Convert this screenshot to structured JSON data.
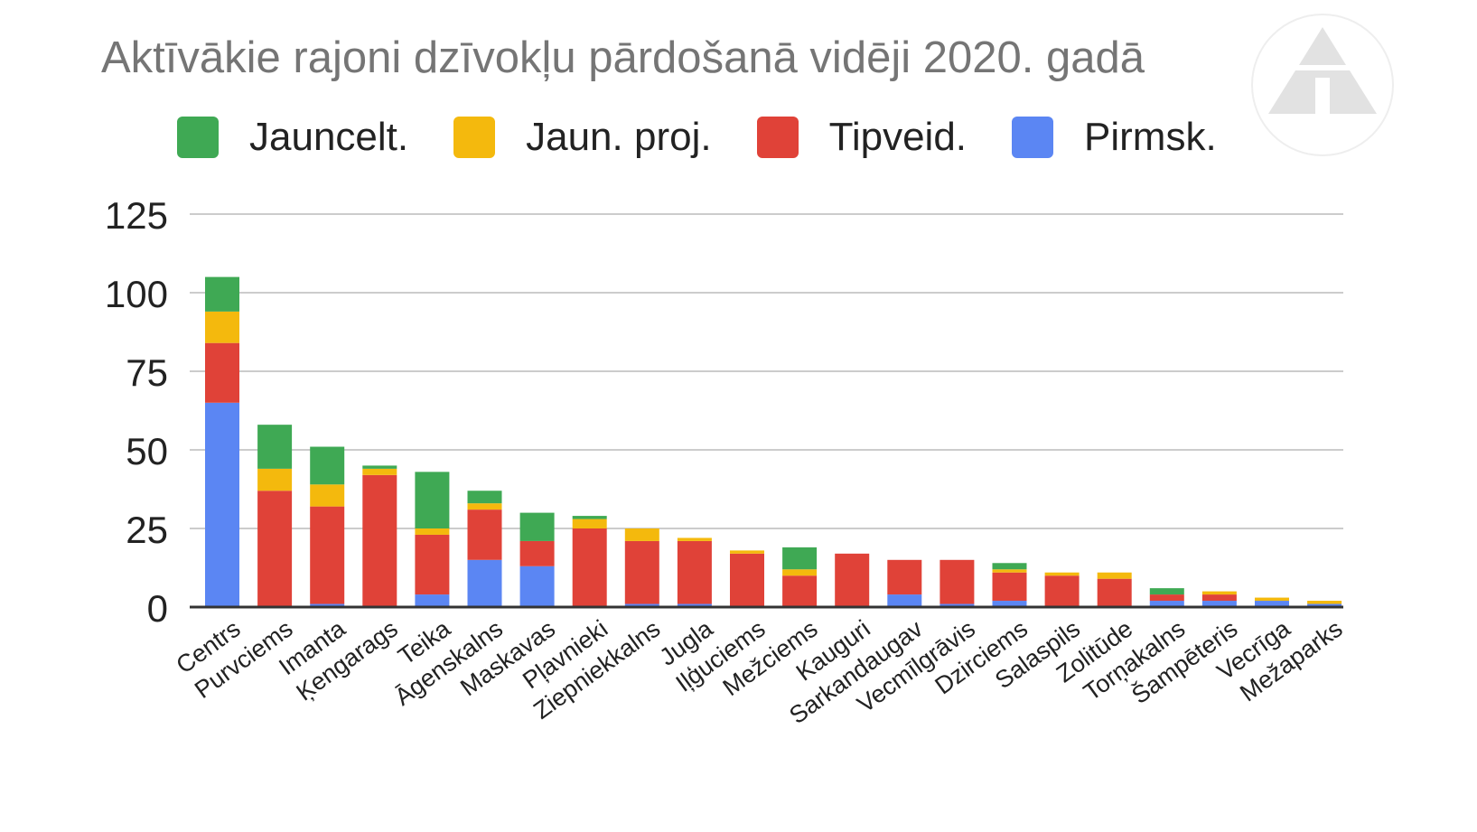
{
  "chart_data": {
    "type": "bar",
    "stacked": true,
    "title": "Aktīvākie rajoni dzīvokļu pārdošanā vidēji 2020. gadā",
    "xlabel": "",
    "ylabel": "",
    "ylim": [
      0,
      125
    ],
    "yticks": [
      "0",
      "25",
      "50",
      "75",
      "100",
      "125"
    ],
    "grid": true,
    "legend_position": "top",
    "categories": [
      "Centrs",
      "Purvciems",
      "Imanta",
      "Ķengarags",
      "Teika",
      "Āgenskalns",
      "Maskavas",
      "Pļavnieki",
      "Ziepniekkalns",
      "Jugla",
      "Iļģuciems",
      "Mežciems",
      "Kauguri",
      "Sarkandaugav",
      "Vecmīlgrāvis",
      "Dzirciems",
      "Salaspils",
      "Zolitūde",
      "Torņakalns",
      "Šampēteris",
      "Vecrīga",
      "Mežaparks"
    ],
    "series": [
      {
        "name": "Pirmsk.",
        "color": "#5b86f3",
        "values": [
          65,
          0,
          1,
          0,
          4,
          15,
          13,
          0,
          1,
          1,
          0,
          0,
          0,
          4,
          1,
          2,
          0,
          0,
          2,
          2,
          2,
          1
        ]
      },
      {
        "name": "Tipveid.",
        "color": "#e04238",
        "values": [
          19,
          37,
          31,
          42,
          19,
          16,
          8,
          25,
          20,
          20,
          17,
          10,
          17,
          11,
          14,
          9,
          10,
          9,
          2,
          2,
          0,
          0
        ]
      },
      {
        "name": "Jaun. proj.",
        "color": "#f4b90d",
        "values": [
          10,
          7,
          7,
          2,
          2,
          2,
          0,
          3,
          4,
          1,
          1,
          2,
          0,
          0,
          0,
          1,
          1,
          2,
          0,
          1,
          1,
          1
        ]
      },
      {
        "name": "Jauncelt.",
        "color": "#3fa954",
        "values": [
          11,
          14,
          12,
          1,
          18,
          4,
          9,
          1,
          0,
          0,
          0,
          7,
          0,
          0,
          0,
          2,
          0,
          0,
          2,
          0,
          0,
          0
        ]
      }
    ]
  }
}
